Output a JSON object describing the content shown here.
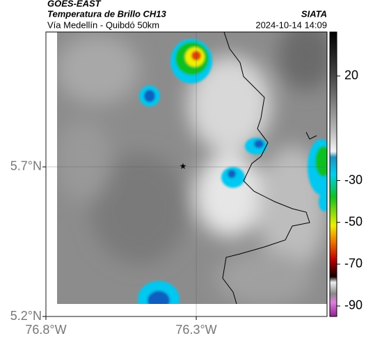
{
  "header": {
    "title": "GOES-EAST",
    "subtitle": "Temperatura de Brillo CH13",
    "region": "Vía Medellín - Quibdó 50km",
    "source": "SIATA",
    "datetime": "2024-10-14 14:09"
  },
  "map": {
    "xlim": [
      -76.8,
      -75.865
    ],
    "ylim": [
      5.2,
      6.151
    ],
    "lat_ticks": [
      {
        "value": 5.7,
        "label": "5.7°N"
      },
      {
        "value": 5.2,
        "label": "5.2°N"
      }
    ],
    "lon_ticks": [
      {
        "value": -76.8,
        "label": "76.8°W"
      },
      {
        "value": -76.3,
        "label": "76.3°W"
      }
    ]
  },
  "colorbar": {
    "lim": [
      -95,
      41
    ],
    "ticks": [
      20,
      -30,
      -50,
      -70,
      -90
    ]
  }
}
